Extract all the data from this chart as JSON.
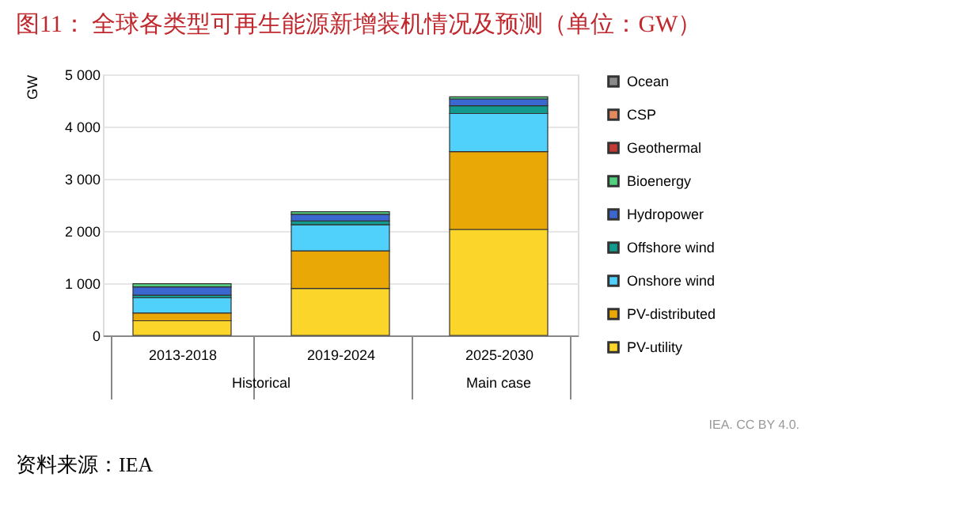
{
  "chart_data": {
    "type": "bar",
    "stacked": true,
    "title": "图11：  全球各类型可再生能源新增装机情况及预测（单位：GW）",
    "ylabel": "GW",
    "categories": [
      "2013-2018",
      "2019-2024",
      "2025-2030"
    ],
    "series": [
      {
        "name": "PV-utility",
        "color": "#fcd52a",
        "values": [
          280,
          900,
          2030
        ]
      },
      {
        "name": "PV-distributed",
        "color": "#eaa806",
        "values": [
          150,
          720,
          1490
        ]
      },
      {
        "name": "Onshore wind",
        "color": "#4fd1fc",
        "values": [
          290,
          500,
          730
        ]
      },
      {
        "name": "Offshore wind",
        "color": "#119a8d",
        "values": [
          50,
          70,
          150
        ]
      },
      {
        "name": "Hydropower",
        "color": "#3a67d0",
        "values": [
          160,
          130,
          130
        ]
      },
      {
        "name": "Bioenergy",
        "color": "#51cf7f",
        "values": [
          60,
          50,
          40
        ]
      },
      {
        "name": "Geothermal",
        "color": "#c33a34",
        "values": [
          null,
          null,
          null
        ]
      },
      {
        "name": "CSP",
        "color": "#e58a5f",
        "values": [
          null,
          null,
          null
        ]
      },
      {
        "name": "Ocean",
        "color": "#8a8a8a",
        "values": [
          null,
          null,
          null
        ]
      }
    ],
    "ylim": [
      0,
      5000
    ],
    "yticks": [
      0,
      {
        "value": 1000,
        "label": "1 000"
      },
      {
        "value": 2000,
        "label": "2 000"
      },
      {
        "value": 3000,
        "label": "3 000"
      },
      {
        "value": 4000,
        "label": "4 000"
      },
      {
        "value": 5000,
        "label": "5 000"
      }
    ],
    "grid": "y",
    "legend": "right",
    "annotations": [
      "Historical",
      "Main case",
      "IEA. CC BY 4.0.",
      "资料来源：IEA"
    ]
  }
}
